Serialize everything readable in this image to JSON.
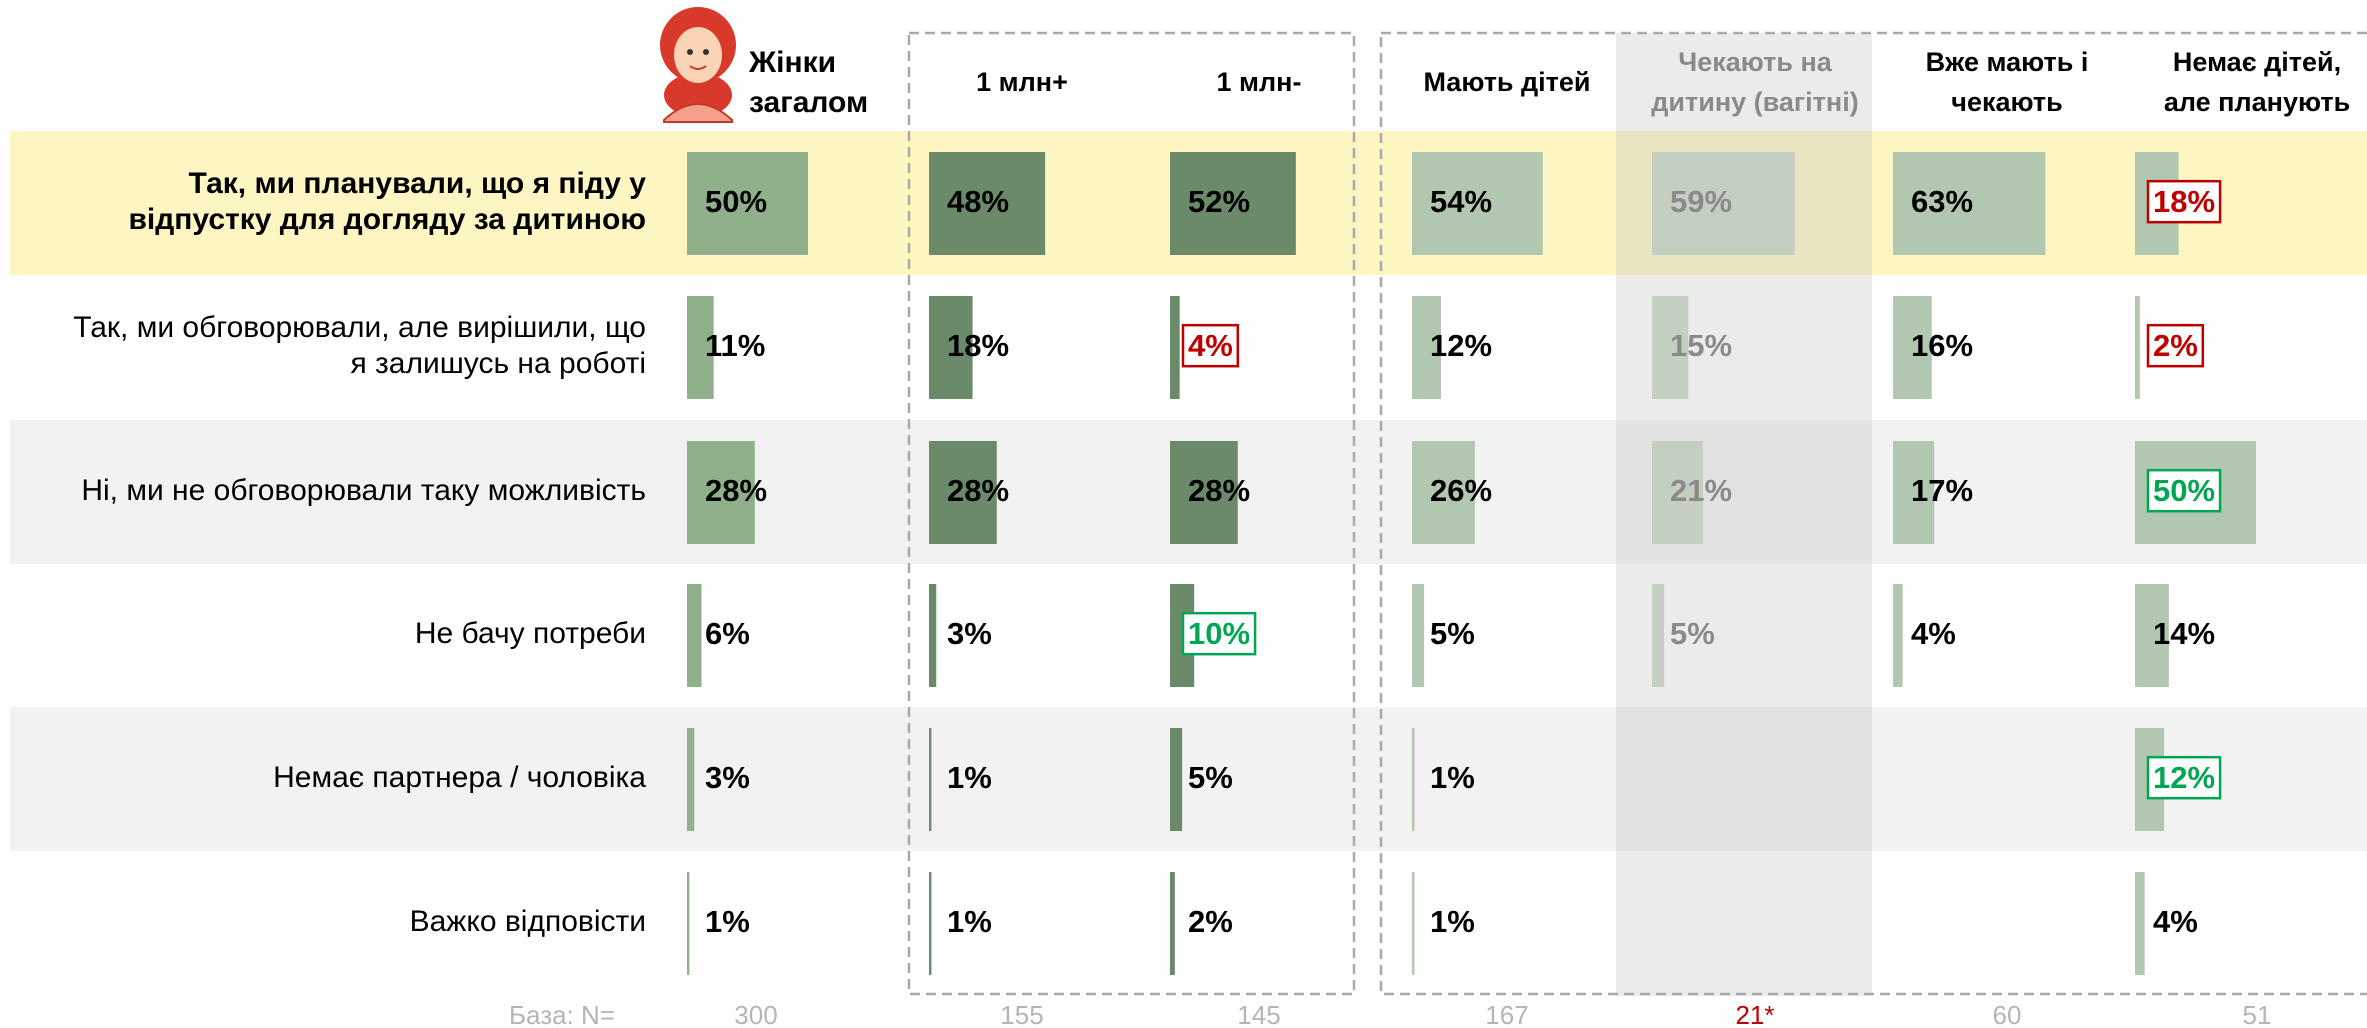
{
  "chart_data": {
    "type": "bar-table",
    "categories": [
      [
        "Так, ми планували, що я піду у",
        "відпустку для догляду за дитиною"
      ],
      [
        "Так, ми обговорювали, але вирішили, що",
        "я залишусь на роботі"
      ],
      [
        "Ні, ми не обговорювали таку можливість"
      ],
      [
        "Не бачу потреби"
      ],
      [
        "Немає партнера / чоловіка"
      ],
      [
        "Важко відповісти"
      ]
    ],
    "xlim": [
      0,
      100
    ],
    "base_label": "База: N=",
    "series": [
      {
        "name": [
          "Жінки",
          "загалом"
        ],
        "color": "#8fb08a",
        "values": [
          50,
          11,
          28,
          6,
          3,
          1
        ],
        "value_labels": [
          "50%",
          "11%",
          "28%",
          "6%",
          "3%",
          "1%"
        ],
        "base": "300"
      },
      {
        "name": [
          "1 млн+"
        ],
        "color": "#6b8a6a",
        "values": [
          48,
          18,
          28,
          3,
          1,
          1
        ],
        "value_labels": [
          "48%",
          "18%",
          "28%",
          "3%",
          "1%",
          "1%"
        ],
        "base": "155"
      },
      {
        "name": [
          "1 млн-"
        ],
        "color": "#6b8a6a",
        "values": [
          52,
          4,
          28,
          10,
          5,
          2
        ],
        "value_labels": [
          "52%",
          "4%",
          "28%",
          "10%",
          "5%",
          "2%"
        ],
        "label_boxes": [
          null,
          "#c00000",
          null,
          "#00a651",
          null,
          null
        ],
        "base": "145"
      },
      {
        "name": [
          "Мають дітей"
        ],
        "color": "#b2c7b0",
        "values": [
          54,
          12,
          26,
          5,
          1,
          1
        ],
        "value_labels": [
          "54%",
          "12%",
          "26%",
          "5%",
          "1%",
          "1%"
        ],
        "base": "167"
      },
      {
        "name": [
          "Чекають на",
          "дитину (вагітні)"
        ],
        "color": "#c4cfc1",
        "label_color": "#8a8a8a",
        "shaded": true,
        "values": [
          59,
          15,
          21,
          5,
          null,
          null
        ],
        "value_labels": [
          "59%",
          "15%",
          "21%",
          "5%",
          null,
          null
        ],
        "base": "21*",
        "base_color": "#c00000"
      },
      {
        "name": [
          "Вже мають і",
          "чекають"
        ],
        "color": "#b2c7b0",
        "values": [
          63,
          16,
          17,
          4,
          null,
          null
        ],
        "value_labels": [
          "63%",
          "16%",
          "17%",
          "4%",
          null,
          null
        ],
        "base": "60"
      },
      {
        "name": [
          "Немає дітей,",
          "але планують"
        ],
        "color": "#b2c7b0",
        "values": [
          18,
          2,
          50,
          14,
          12,
          4
        ],
        "value_labels": [
          "18%",
          "2%",
          "50%",
          "14%",
          "12%",
          "4%"
        ],
        "label_boxes": [
          "#c00000",
          "#c00000",
          "#00a651",
          null,
          "#00a651",
          null
        ],
        "base": "51"
      }
    ]
  }
}
